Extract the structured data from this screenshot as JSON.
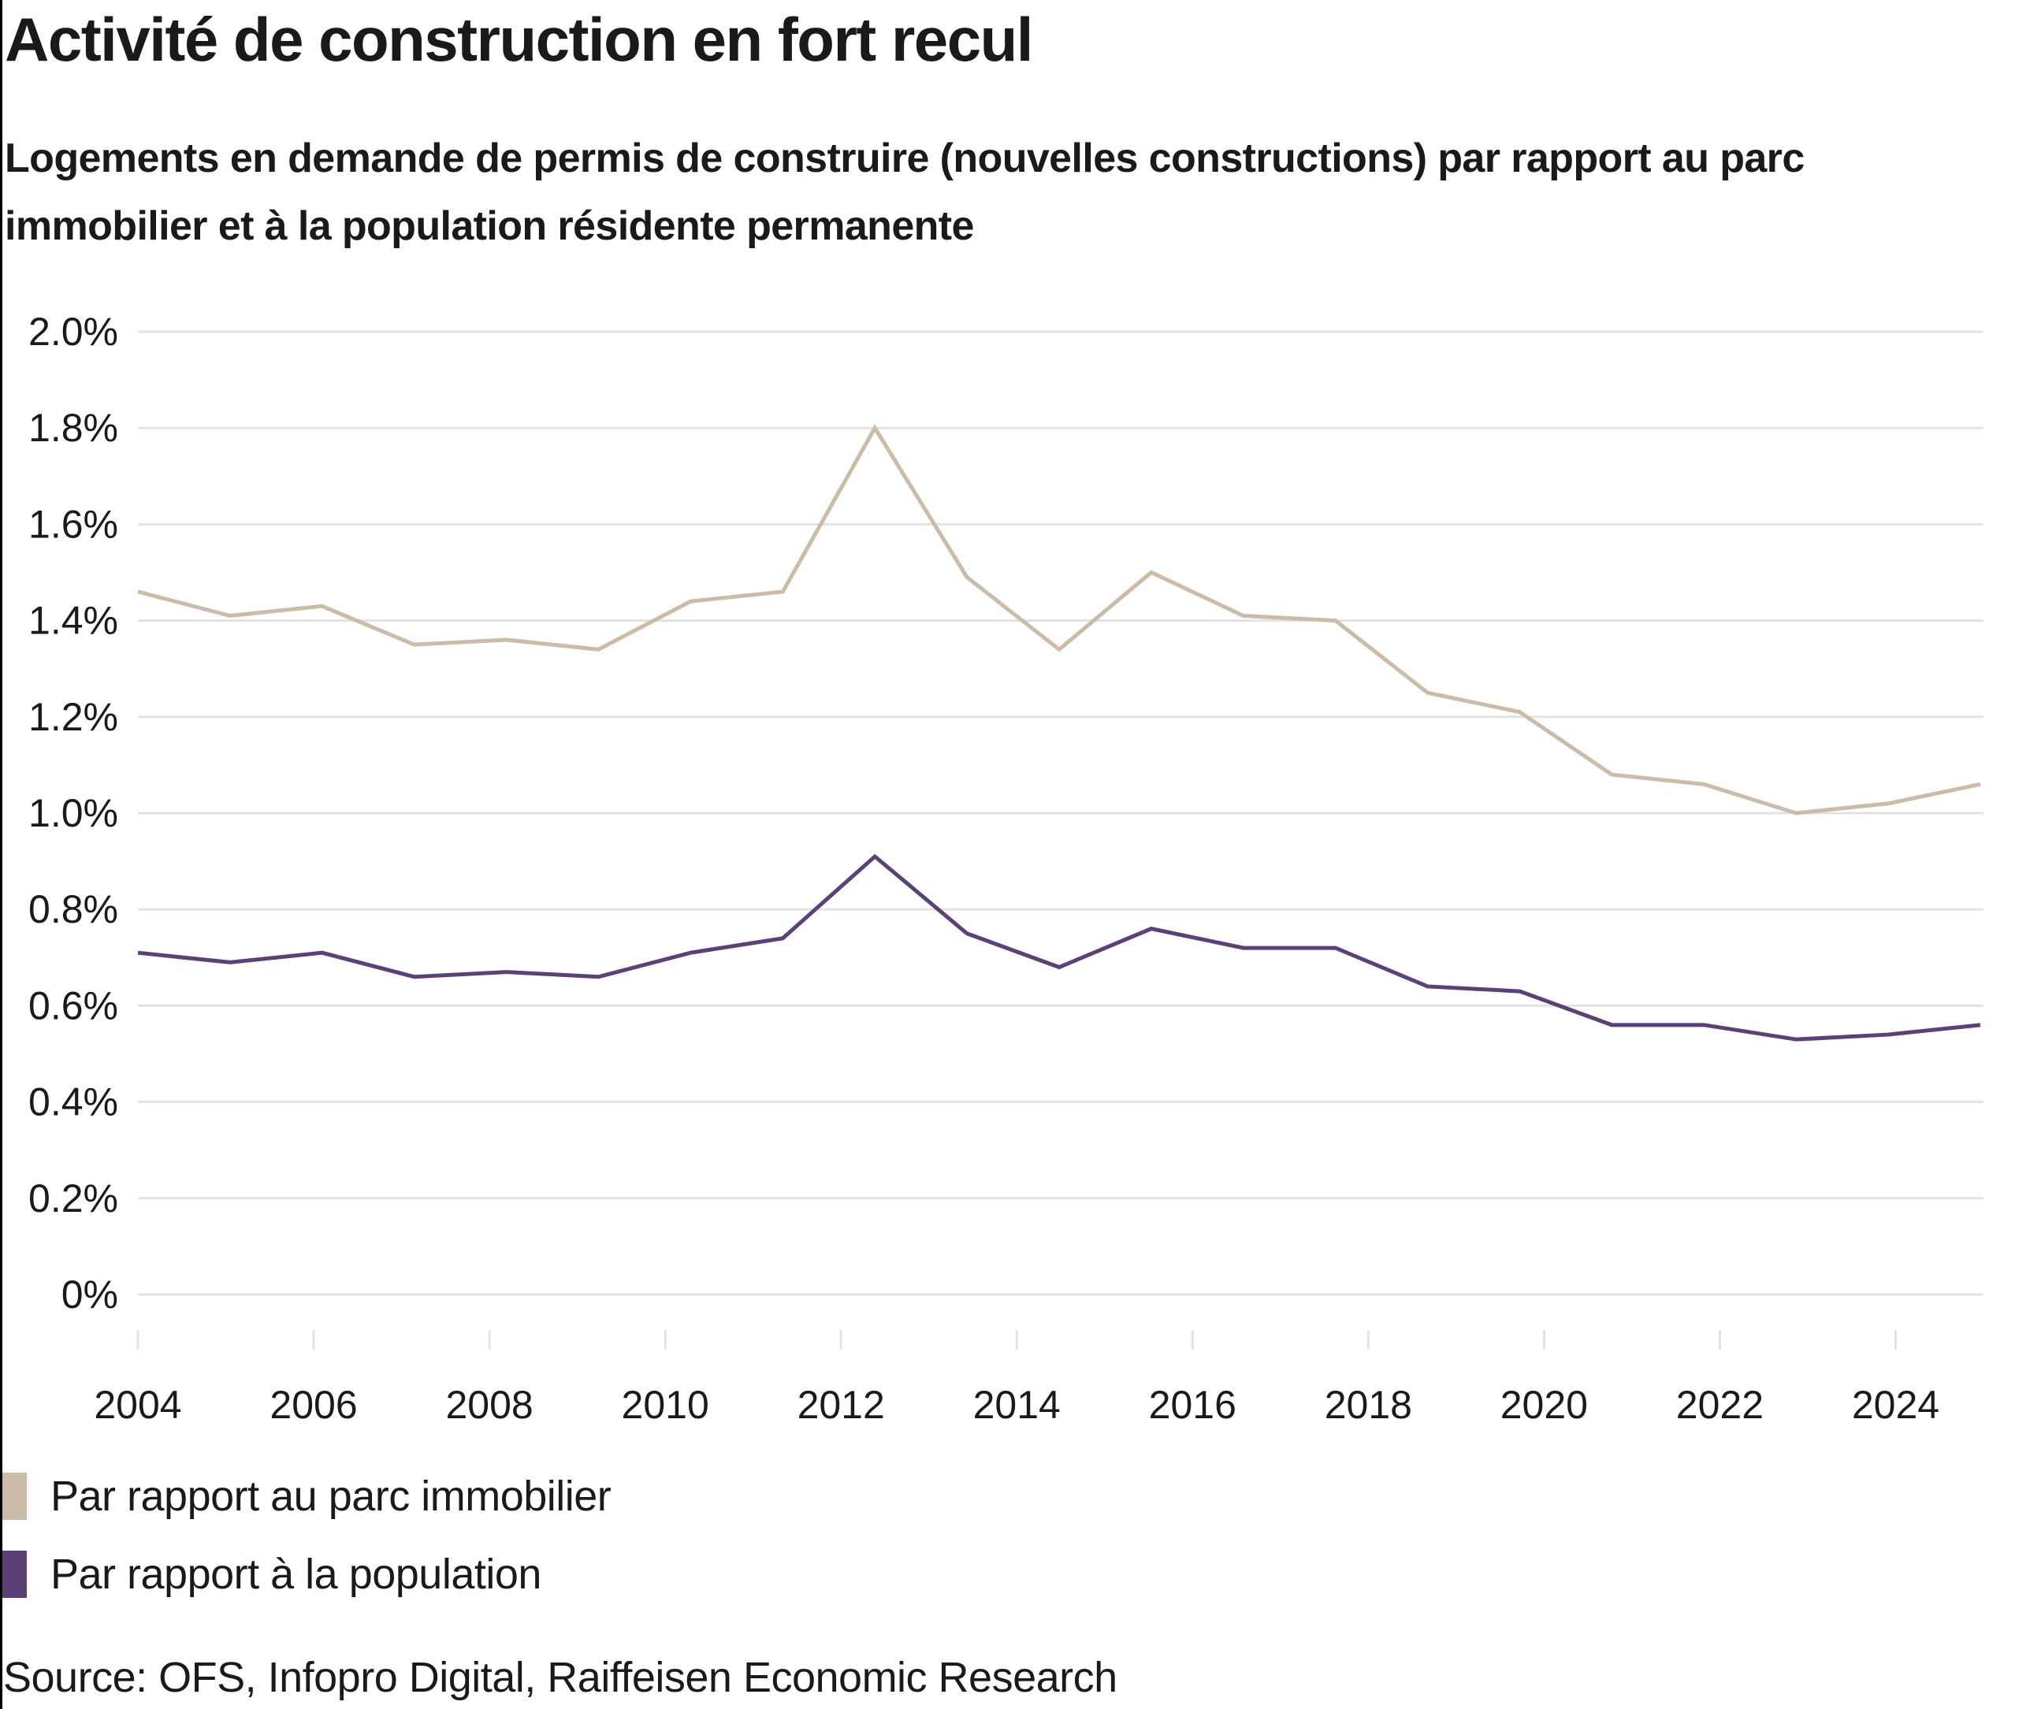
{
  "title": "Activité de construction en fort recul",
  "subtitle": "Logements en demande de permis de construire (nouvelles constructions) par rapport au parc immobilier et à la population résidente permanente",
  "source": "Source: OFS, Infopro Digital, Raiffeisen Economic Research",
  "chart_data": {
    "type": "line",
    "title": "Activité de construction en fort recul",
    "subtitle": "Logements en demande de permis de construire (nouvelles constructions) par rapport au parc immobilier et à la population résidente permanente",
    "xlabel": "",
    "ylabel": "",
    "x": [
      2004,
      2005,
      2006,
      2007,
      2008,
      2009,
      2010,
      2011,
      2012,
      2013,
      2014,
      2015,
      2016,
      2017,
      2018,
      2019,
      2020,
      2021,
      2022,
      2023,
      2024
    ],
    "x_range": [
      2004,
      2025
    ],
    "x_ticks": [
      "2004",
      "2006",
      "2008",
      "2010",
      "2012",
      "2014",
      "2016",
      "2018",
      "2020",
      "2022",
      "2024"
    ],
    "ylim": [
      0,
      2.0
    ],
    "y_ticks": [
      "0%",
      "0.2%",
      "0.4%",
      "0.6%",
      "0.8%",
      "1.0%",
      "1.2%",
      "1.4%",
      "1.6%",
      "1.8%",
      "2.0%"
    ],
    "y_unit": "%",
    "grid": "horizontal",
    "legend_position": "bottom-left",
    "series": [
      {
        "name": "Par rapport au parc immobilier",
        "color": "#CBBBA9",
        "values": [
          1.46,
          1.41,
          1.43,
          1.35,
          1.36,
          1.34,
          1.44,
          1.46,
          1.8,
          1.49,
          1.34,
          1.5,
          1.41,
          1.4,
          1.25,
          1.21,
          1.08,
          1.06,
          1.0,
          1.02,
          1.06
        ]
      },
      {
        "name": "Par rapport à la population",
        "color": "#5C4177",
        "values": [
          0.71,
          0.69,
          0.71,
          0.66,
          0.67,
          0.66,
          0.71,
          0.74,
          0.91,
          0.75,
          0.68,
          0.76,
          0.72,
          0.72,
          0.64,
          0.63,
          0.56,
          0.56,
          0.53,
          0.54,
          0.56
        ]
      }
    ]
  },
  "colors": {
    "grid": "#E3E3E3",
    "text": "#1A1A1A"
  }
}
